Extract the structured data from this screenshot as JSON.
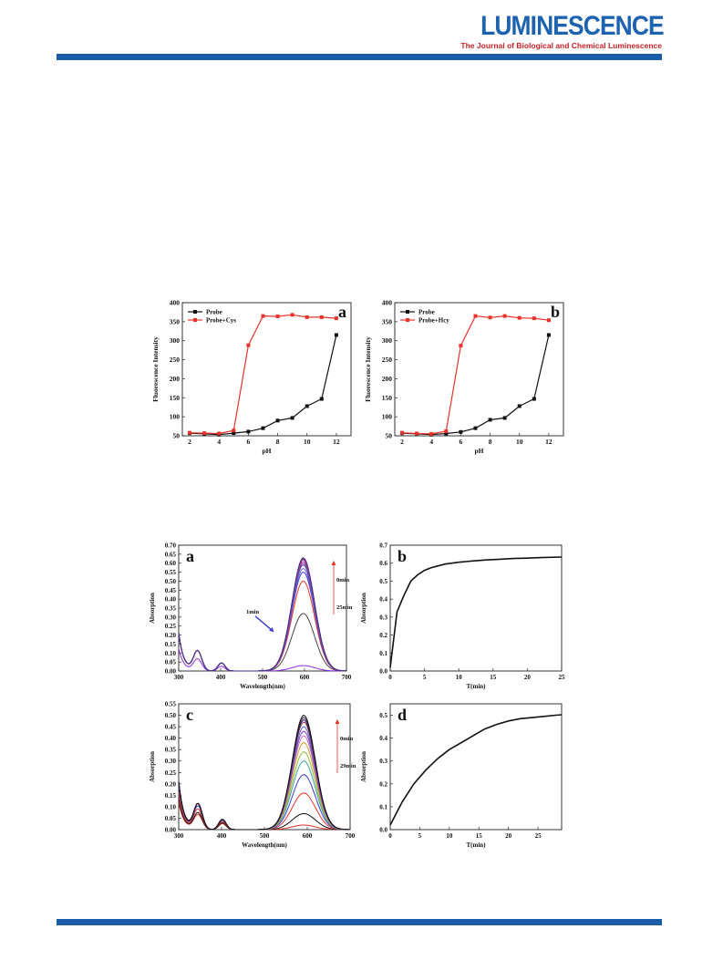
{
  "header": {
    "journal_name": "LUMINESCENCE",
    "journal_subtitle": "The Journal of Biological and Chemical Luminescence",
    "accent_color": "#1a5ca8",
    "subtitle_color": "#c82127"
  },
  "chart_data": [
    {
      "id": "ph-cys",
      "type": "line",
      "panel_label": "a",
      "xlabel": "pH",
      "ylabel": "Fluorescence Intensity",
      "xlim": [
        1.5,
        13
      ],
      "ylim": [
        50,
        400
      ],
      "xticks": [
        2,
        4,
        6,
        8,
        10,
        12
      ],
      "yticks": [
        50,
        100,
        150,
        200,
        250,
        300,
        350,
        400
      ],
      "legend_position": "top-left",
      "series": [
        {
          "name": "Probe",
          "color": "#111111",
          "x": [
            2,
            3,
            4,
            5,
            6,
            7,
            8,
            9,
            10,
            11,
            12
          ],
          "y": [
            57,
            55,
            53,
            57,
            61,
            70,
            90,
            97,
            128,
            147,
            315
          ]
        },
        {
          "name": "Probe+Cys",
          "color": "#e8322a",
          "x": [
            2,
            3,
            4,
            5,
            6,
            7,
            8,
            9,
            10,
            11,
            12
          ],
          "y": [
            58,
            57,
            56,
            64,
            288,
            365,
            364,
            368,
            362,
            362,
            359
          ]
        }
      ]
    },
    {
      "id": "ph-hcy",
      "type": "line",
      "panel_label": "b",
      "xlabel": "pH",
      "ylabel": "Fluorescence Intensity",
      "xlim": [
        1.5,
        13
      ],
      "ylim": [
        50,
        400
      ],
      "xticks": [
        2,
        4,
        6,
        8,
        10,
        12
      ],
      "yticks": [
        50,
        100,
        150,
        200,
        250,
        300,
        350,
        400
      ],
      "legend_position": "top-left",
      "series": [
        {
          "name": "Probe",
          "color": "#111111",
          "x": [
            2,
            3,
            4,
            5,
            6,
            7,
            8,
            9,
            10,
            11,
            12
          ],
          "y": [
            57,
            55,
            53,
            56,
            60,
            70,
            92,
            97,
            128,
            147,
            315
          ]
        },
        {
          "name": "Probe+Hcy",
          "color": "#e8322a",
          "x": [
            2,
            3,
            4,
            5,
            6,
            7,
            8,
            9,
            10,
            11,
            12
          ],
          "y": [
            58,
            56,
            55,
            62,
            287,
            365,
            361,
            365,
            360,
            359,
            354
          ]
        }
      ]
    },
    {
      "id": "abs-time-a",
      "type": "line",
      "panel_label": "a",
      "xlabel": "Wavelength(nm)",
      "ylabel": "Absorption",
      "xlim": [
        300,
        700
      ],
      "ylim": [
        0,
        0.7
      ],
      "xticks": [
        300,
        400,
        500,
        600,
        700
      ],
      "yticks": [
        0,
        0.05,
        0.1,
        0.15,
        0.2,
        0.25,
        0.3,
        0.35,
        0.4,
        0.45,
        0.5,
        0.55,
        0.6,
        0.65,
        0.7
      ],
      "ytick_labels": [
        "0.00",
        "0.05",
        "0.10",
        "0.15",
        "0.20",
        "0.25",
        "0.30",
        "0.35",
        "0.40",
        "0.45",
        "0.50",
        "0.55",
        "0.60",
        "0.65",
        "0.70"
      ],
      "peak_wavelength": 597,
      "annotations": {
        "top": "0min",
        "bottom": "25min",
        "early": "1min"
      },
      "spectra": [
        {
          "peak": 0.03,
          "color": "#8b2be2"
        },
        {
          "peak": 0.32,
          "color": "#444444"
        },
        {
          "peak": 0.5,
          "color": "#e8322a"
        },
        {
          "peak": 0.55,
          "color": "#3a3ad0"
        },
        {
          "peak": 0.57,
          "color": "#6a6adb"
        },
        {
          "peak": 0.59,
          "color": "#2f4fa8"
        },
        {
          "peak": 0.6,
          "color": "#8844aa"
        },
        {
          "peak": 0.61,
          "color": "#c23c8e"
        },
        {
          "peak": 0.62,
          "color": "#5a2a9a"
        },
        {
          "peak": 0.625,
          "color": "#cc3366"
        },
        {
          "peak": 0.63,
          "color": "#333388"
        }
      ]
    },
    {
      "id": "abs-kinetics-b",
      "type": "line",
      "panel_label": "b",
      "xlabel": "T(min)",
      "ylabel": "Absorption",
      "xlim": [
        0,
        25
      ],
      "ylim": [
        0,
        0.7
      ],
      "xticks": [
        0,
        5,
        10,
        15,
        20,
        25
      ],
      "yticks": [
        0,
        0.1,
        0.2,
        0.3,
        0.4,
        0.5,
        0.6,
        0.7
      ],
      "ytick_labels": [
        "0.0",
        "0.1",
        "0.2",
        "0.3",
        "0.4",
        "0.5",
        "0.6",
        "0.7"
      ],
      "series": [
        {
          "color": "#111111",
          "x": [
            0,
            1,
            2,
            3,
            4,
            5,
            6,
            7,
            8,
            9,
            10,
            12,
            14,
            16,
            18,
            20,
            22,
            25
          ],
          "y": [
            0.02,
            0.33,
            0.42,
            0.5,
            0.535,
            0.56,
            0.575,
            0.585,
            0.595,
            0.6,
            0.605,
            0.612,
            0.618,
            0.622,
            0.626,
            0.628,
            0.631,
            0.634
          ]
        }
      ]
    },
    {
      "id": "abs-time-c",
      "type": "line",
      "panel_label": "c",
      "xlabel": "Wavelength(nm)",
      "ylabel": "Absorption",
      "xlim": [
        300,
        700
      ],
      "ylim": [
        0,
        0.55
      ],
      "xticks": [
        300,
        400,
        500,
        600,
        700
      ],
      "yticks": [
        0,
        0.05,
        0.1,
        0.15,
        0.2,
        0.25,
        0.3,
        0.35,
        0.4,
        0.45,
        0.5,
        0.55
      ],
      "ytick_labels": [
        "0.00",
        "0.05",
        "0.10",
        "0.15",
        "0.20",
        "0.25",
        "0.30",
        "0.35",
        "0.40",
        "0.45",
        "0.50",
        "0.55"
      ],
      "peak_wavelength": 592,
      "annotations": {
        "top": "0min",
        "bottom": "29min"
      },
      "spectra": [
        {
          "peak": 0.02,
          "color": "#e8322a"
        },
        {
          "peak": 0.07,
          "color": "#111111"
        },
        {
          "peak": 0.16,
          "color": "#e8322a"
        },
        {
          "peak": 0.24,
          "color": "#3a3ad0"
        },
        {
          "peak": 0.3,
          "color": "#3aa6a0"
        },
        {
          "peak": 0.34,
          "color": "#8fbf3f"
        },
        {
          "peak": 0.38,
          "color": "#c9a227"
        },
        {
          "peak": 0.41,
          "color": "#d06ab0"
        },
        {
          "peak": 0.43,
          "color": "#7744bb"
        },
        {
          "peak": 0.45,
          "color": "#5566cc"
        },
        {
          "peak": 0.47,
          "color": "#aa3355"
        },
        {
          "peak": 0.48,
          "color": "#222266"
        },
        {
          "peak": 0.49,
          "color": "#442244"
        },
        {
          "peak": 0.5,
          "color": "#111111"
        }
      ]
    },
    {
      "id": "abs-kinetics-d",
      "type": "line",
      "panel_label": "d",
      "xlabel": "T(min)",
      "ylabel": "Absorption",
      "xlim": [
        0,
        29
      ],
      "ylim": [
        0,
        0.55
      ],
      "xticks": [
        0,
        5,
        10,
        15,
        20,
        25
      ],
      "yticks": [
        0,
        0.1,
        0.2,
        0.3,
        0.4,
        0.5
      ],
      "ytick_labels": [
        "0.0",
        "0.1",
        "0.2",
        "0.3",
        "0.4",
        "0.5"
      ],
      "series": [
        {
          "color": "#111111",
          "x": [
            0,
            1,
            2,
            3,
            4,
            5,
            6,
            8,
            10,
            12,
            14,
            16,
            18,
            20,
            22,
            24,
            26,
            28,
            29
          ],
          "y": [
            0.02,
            0.07,
            0.12,
            0.16,
            0.2,
            0.23,
            0.26,
            0.31,
            0.35,
            0.38,
            0.41,
            0.44,
            0.46,
            0.475,
            0.485,
            0.49,
            0.495,
            0.5,
            0.502
          ]
        }
      ]
    }
  ]
}
